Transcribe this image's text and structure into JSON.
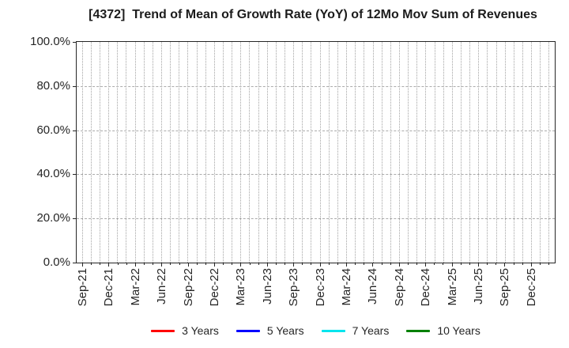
{
  "chart_data": {
    "type": "line",
    "title": "[4372]  Trend of Mean of Growth Rate (YoY) of 12Mo Mov Sum of Revenues",
    "x_tick_labels": [
      "Sep-21",
      "Dec-21",
      "Mar-22",
      "Jun-22",
      "Sep-22",
      "Dec-22",
      "Mar-23",
      "Jun-23",
      "Sep-23",
      "Dec-23",
      "Mar-24",
      "Jun-24",
      "Sep-24",
      "Dec-24",
      "Mar-25",
      "Jun-25",
      "Sep-25",
      "Dec-25"
    ],
    "y_tick_labels": [
      "0.0%",
      "20.0%",
      "40.0%",
      "60.0%",
      "80.0%",
      "100.0%"
    ],
    "y_tick_values": [
      0,
      20,
      40,
      60,
      80,
      100
    ],
    "ylim": [
      0,
      100
    ],
    "grid": "on",
    "legend_position": "bottom",
    "series": [
      {
        "name": "3 Years",
        "color": "#ff0000",
        "values": []
      },
      {
        "name": "5 Years",
        "color": "#0000ff",
        "values": []
      },
      {
        "name": "7 Years",
        "color": "#00e5ee",
        "values": []
      },
      {
        "name": "10 Years",
        "color": "#008000",
        "values": []
      }
    ],
    "note": "plot area is empty - no data points are drawn for any series"
  }
}
